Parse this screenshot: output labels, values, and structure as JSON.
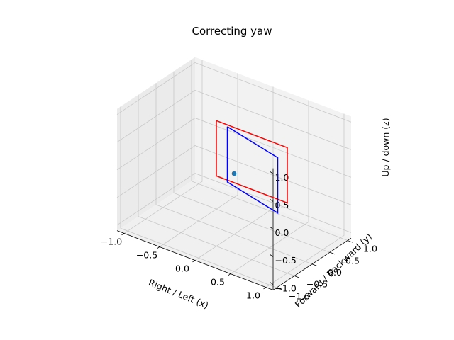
{
  "chart_data": {
    "type": "line3d",
    "title": "Correcting yaw",
    "xlabel": "Right / Left (x)",
    "ylabel": "Forward / Backward (y)",
    "zlabel": "Up / down (z)",
    "xlim": [
      -1.0,
      1.0
    ],
    "ylim": [
      -1.0,
      1.0
    ],
    "zlim": [
      -1.0,
      1.0
    ],
    "xticks": [
      "−1.0",
      "−0.5",
      "0.0",
      "0.5",
      "1.0"
    ],
    "yticks": [
      "−1.0",
      "−0.5",
      "0.0",
      "0.5",
      "1.0"
    ],
    "zticks": [
      "−1.0",
      "−0.5",
      "0.0",
      "0.5",
      "1.0"
    ],
    "grid": true,
    "series": [
      {
        "color": "#ff0000",
        "x": [
          -0.5,
          0.5,
          0.5,
          -0.5,
          -0.5
        ],
        "y": [
          0.5,
          0.5,
          0.5,
          0.5,
          0.5
        ],
        "z": [
          0.5,
          0.5,
          -0.5,
          -0.5,
          0.5
        ]
      },
      {
        "color": "#0000ff",
        "x": [
          -0.32,
          0.55,
          0.55,
          -0.32,
          -0.32
        ],
        "y": [
          0.45,
          0.13,
          0.13,
          0.45,
          0.45
        ],
        "z": [
          0.5,
          0.5,
          -0.5,
          -0.5,
          0.5
        ]
      }
    ],
    "points": [
      {
        "color": "#1f77b4",
        "x": 0.0,
        "y": 0.0,
        "z": 0.0
      }
    ]
  }
}
